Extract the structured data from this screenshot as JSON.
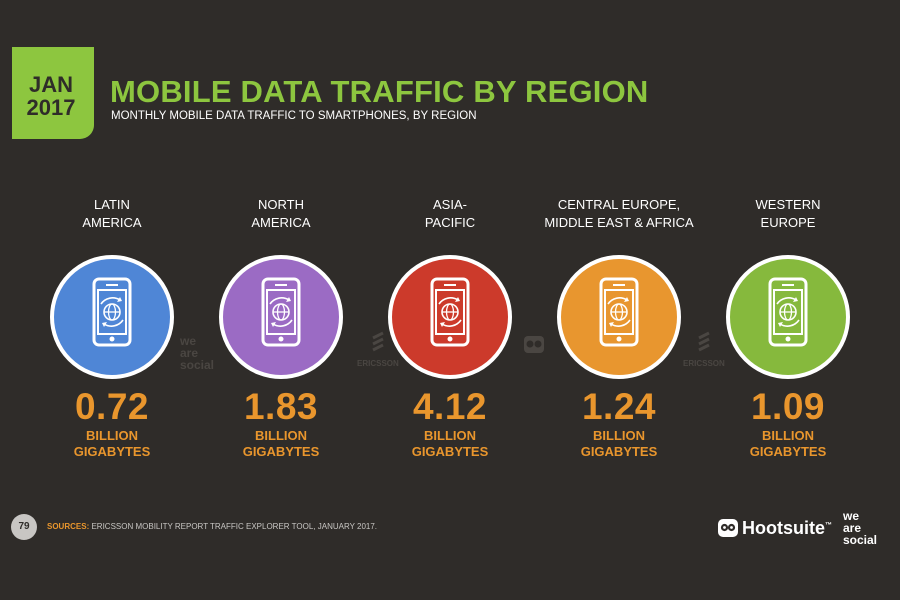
{
  "header": {
    "date_line1": "JAN",
    "date_line2": "2017",
    "title": "MOBILE DATA TRAFFIC BY REGION",
    "subtitle": "MONTHLY MOBILE DATA TRAFFIC TO SMARTPHONES, BY REGION"
  },
  "regions": [
    {
      "line1": "LATIN",
      "line2": "AMERICA",
      "value": "0.72",
      "unit_line1": "BILLION",
      "unit_line2": "GIGABYTES",
      "color": "#4f86d6"
    },
    {
      "line1": "NORTH",
      "line2": "AMERICA",
      "value": "1.83",
      "unit_line1": "BILLION",
      "unit_line2": "GIGABYTES",
      "color": "#9b6bc4"
    },
    {
      "line1": "ASIA-",
      "line2": "PACIFIC",
      "value": "4.12",
      "unit_line1": "BILLION",
      "unit_line2": "GIGABYTES",
      "color": "#cc3a2b"
    },
    {
      "line1": "CENTRAL EUROPE,",
      "line2": "MIDDLE EAST & AFRICA",
      "value": "1.24",
      "unit_line1": "BILLION",
      "unit_line2": "GIGABYTES",
      "color": "#e8962f"
    },
    {
      "line1": "WESTERN",
      "line2": "EUROPE",
      "value": "1.09",
      "unit_line1": "BILLION",
      "unit_line2": "GIGABYTES",
      "color": "#86b93d"
    }
  ],
  "watermarks": {
    "wearesocial_1": "we",
    "wearesocial_2": "are",
    "wearesocial_3": "social",
    "ericsson": "ERICSSON"
  },
  "footer": {
    "page_number": "79",
    "sources_label": "SOURCES:",
    "sources_text": " ERICSSON MOBILITY REPORT TRAFFIC EXPLORER TOOL, JANUARY 2017.",
    "hootsuite": "Hootsuite",
    "hootsuite_tm": "™",
    "wearesocial_1": "we",
    "wearesocial_2": "are",
    "wearesocial_3": "social"
  },
  "icons": {
    "phone": "smartphone-globe-icon",
    "owl": "hootsuite-owl-icon"
  },
  "colors": {
    "background": "#2f2c29",
    "accent_green": "#8dc63f",
    "value_orange": "#e9962d"
  }
}
